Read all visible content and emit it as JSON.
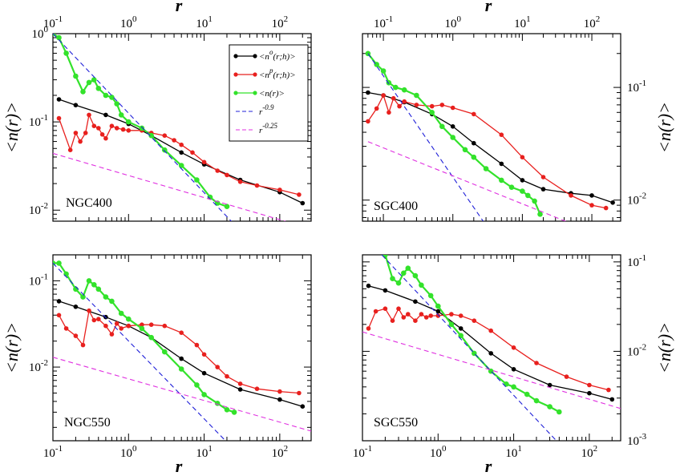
{
  "chart_data": [
    {
      "type": "line",
      "panel": "NGC400",
      "label": "NGC400",
      "xscale": "log",
      "yscale": "log",
      "xlim": [
        0.1,
        260
      ],
      "ylim": [
        0.0075,
        1.0
      ],
      "xlabel": "r",
      "ylabel": "<n(r)>",
      "xlabel_position": "top",
      "ylabel_side": "left",
      "xticks": [
        {
          "value": 0.1,
          "base": "10",
          "exp": "-1"
        },
        {
          "value": 1,
          "base": "10",
          "exp": "0"
        },
        {
          "value": 10,
          "base": "10",
          "exp": "1"
        },
        {
          "value": 100,
          "base": "10",
          "exp": "2"
        }
      ],
      "yticks": [
        {
          "value": 0.01,
          "base": "10",
          "exp": "-2"
        },
        {
          "value": 0.1,
          "base": "10",
          "exp": "-1"
        },
        {
          "value": 1,
          "base": "10",
          "exp": "0"
        }
      ],
      "legend": {
        "position": "top-right",
        "entries": [
          {
            "base": "<n",
            "sup": "o",
            "rest": "(r;h)>",
            "color": "#000000"
          },
          {
            "base": "<n",
            "sup": "p",
            "rest": "(r;h)>",
            "color": "#e8201e"
          },
          {
            "base": "<n(r)>",
            "sup": "",
            "rest": "",
            "color": "#33e22b"
          },
          {
            "base": "r",
            "sup": "-0.9",
            "rest": "",
            "color": "#2020d8"
          },
          {
            "base": "r",
            "sup": "-0.25",
            "rest": "",
            "color": "#e030e0"
          }
        ]
      },
      "series": [
        {
          "name": "<n^o(r;h)>",
          "color": "#000000",
          "style": "solid-markers",
          "x": [
            0.12,
            0.2,
            0.5,
            1,
            2,
            5,
            10,
            30,
            100,
            200
          ],
          "y": [
            0.18,
            0.155,
            0.12,
            0.095,
            0.07,
            0.045,
            0.033,
            0.022,
            0.016,
            0.012
          ]
        },
        {
          "name": "<n^p(r;h)>",
          "color": "#e8201e",
          "style": "solid-markers",
          "x": [
            0.12,
            0.17,
            0.2,
            0.23,
            0.27,
            0.3,
            0.35,
            0.4,
            0.45,
            0.5,
            0.6,
            0.7,
            0.85,
            1,
            1.5,
            2,
            3,
            4,
            5,
            7,
            10,
            15,
            20,
            30,
            50,
            100,
            180
          ],
          "y": [
            0.11,
            0.048,
            0.075,
            0.06,
            0.075,
            0.12,
            0.09,
            0.085,
            0.072,
            0.065,
            0.09,
            0.085,
            0.082,
            0.08,
            0.08,
            0.075,
            0.07,
            0.062,
            0.055,
            0.045,
            0.035,
            0.028,
            0.025,
            0.021,
            0.019,
            0.017,
            0.015
          ]
        },
        {
          "name": "<n(r)>",
          "color": "#33e22b",
          "style": "solid-markers",
          "x": [
            0.1,
            0.12,
            0.15,
            0.2,
            0.25,
            0.3,
            0.35,
            0.4,
            0.5,
            0.6,
            0.7,
            0.8,
            1,
            1.5,
            2,
            3,
            5,
            8,
            12,
            15,
            20
          ],
          "y": [
            1.0,
            0.9,
            0.6,
            0.33,
            0.22,
            0.28,
            0.3,
            0.24,
            0.2,
            0.19,
            0.16,
            0.12,
            0.1,
            0.085,
            0.07,
            0.048,
            0.032,
            0.022,
            0.014,
            0.012,
            0.011
          ]
        },
        {
          "name": "r^-0.9",
          "color": "#2020d8",
          "style": "dashed",
          "x": [
            0.1,
            40
          ],
          "y": [
            1.0,
            0.00453
          ]
        },
        {
          "name": "r^-0.25",
          "color": "#e030e0",
          "style": "dashed",
          "x": [
            0.1,
            260
          ],
          "y": [
            0.044,
            0.00613
          ]
        }
      ]
    },
    {
      "type": "line",
      "panel": "SGC400",
      "label": "SGC400",
      "xscale": "log",
      "yscale": "log",
      "xlim": [
        0.05,
        260
      ],
      "ylim": [
        0.0065,
        0.3
      ],
      "xlabel": "r",
      "ylabel": "<n(r)>",
      "xlabel_position": "top",
      "ylabel_side": "right",
      "xticks": [
        {
          "value": 0.1,
          "base": "10",
          "exp": "-1"
        },
        {
          "value": 1,
          "base": "10",
          "exp": "0"
        },
        {
          "value": 10,
          "base": "10",
          "exp": "1"
        },
        {
          "value": 100,
          "base": "10",
          "exp": "2"
        }
      ],
      "yticks": [
        {
          "value": 0.01,
          "base": "10",
          "exp": "-2"
        },
        {
          "value": 0.1,
          "base": "10",
          "exp": "-1"
        }
      ],
      "series": [
        {
          "name": "<n^o(r;h)>",
          "color": "#000000",
          "style": "solid-markers",
          "x": [
            0.06,
            0.1,
            0.2,
            0.5,
            1,
            2,
            5,
            10,
            20,
            50,
            100,
            200
          ],
          "y": [
            0.09,
            0.085,
            0.074,
            0.058,
            0.045,
            0.032,
            0.021,
            0.015,
            0.0125,
            0.0115,
            0.011,
            0.0095
          ]
        },
        {
          "name": "<n^p(r;h)>",
          "color": "#e8201e",
          "style": "solid-markers",
          "x": [
            0.06,
            0.08,
            0.1,
            0.12,
            0.14,
            0.17,
            0.2,
            0.3,
            0.5,
            0.7,
            1,
            2,
            5,
            10,
            20,
            50,
            100,
            160
          ],
          "y": [
            0.05,
            0.065,
            0.085,
            0.06,
            0.08,
            0.068,
            0.075,
            0.07,
            0.068,
            0.07,
            0.066,
            0.058,
            0.038,
            0.024,
            0.016,
            0.011,
            0.009,
            0.0085
          ]
        },
        {
          "name": "<n(r)>",
          "color": "#33e22b",
          "style": "solid-markers",
          "x": [
            0.06,
            0.08,
            0.1,
            0.12,
            0.15,
            0.2,
            0.3,
            0.5,
            0.7,
            1,
            1.5,
            2,
            3,
            5,
            7,
            10,
            12,
            15,
            18
          ],
          "y": [
            0.2,
            0.16,
            0.14,
            0.11,
            0.1,
            0.095,
            0.085,
            0.06,
            0.045,
            0.036,
            0.028,
            0.024,
            0.019,
            0.015,
            0.013,
            0.012,
            0.011,
            0.0098,
            0.0075
          ]
        },
        {
          "name": "r^-0.9",
          "color": "#2020d8",
          "style": "dashed",
          "x": [
            0.06,
            13
          ],
          "y": [
            0.2,
            0.0016
          ]
        },
        {
          "name": "r^-0.25",
          "color": "#e030e0",
          "style": "dashed",
          "x": [
            0.06,
            260
          ],
          "y": [
            0.033,
            0.00412
          ]
        }
      ]
    },
    {
      "type": "line",
      "panel": "NGC550",
      "label": "NGC550",
      "xscale": "log",
      "yscale": "log",
      "xlim": [
        0.1,
        260
      ],
      "ylim": [
        0.0014,
        0.2
      ],
      "xlabel": "r",
      "ylabel": "<n(r)>",
      "xlabel_position": "bottom",
      "ylabel_side": "left",
      "xticks": [
        {
          "value": 0.1,
          "base": "10",
          "exp": "-1"
        },
        {
          "value": 1,
          "base": "10",
          "exp": "0"
        },
        {
          "value": 10,
          "base": "10",
          "exp": "1"
        },
        {
          "value": 100,
          "base": "10",
          "exp": "2"
        }
      ],
      "yticks": [
        {
          "value": 0.01,
          "base": "10",
          "exp": "-2"
        },
        {
          "value": 0.1,
          "base": "10",
          "exp": "-1"
        }
      ],
      "series": [
        {
          "name": "<n^o(r;h)>",
          "color": "#000000",
          "style": "solid-markers",
          "x": [
            0.12,
            0.2,
            0.5,
            1,
            2,
            5,
            10,
            30,
            100,
            200
          ],
          "y": [
            0.058,
            0.05,
            0.038,
            0.03,
            0.022,
            0.0125,
            0.0085,
            0.0055,
            0.0042,
            0.0035
          ]
        },
        {
          "name": "<n^p(r;h)>",
          "color": "#e8201e",
          "style": "solid-markers",
          "x": [
            0.12,
            0.15,
            0.2,
            0.25,
            0.3,
            0.35,
            0.4,
            0.5,
            0.6,
            0.7,
            0.8,
            1,
            1.5,
            2,
            3,
            5,
            8,
            10,
            15,
            20,
            30,
            50,
            100,
            180
          ],
          "y": [
            0.04,
            0.028,
            0.023,
            0.018,
            0.045,
            0.035,
            0.036,
            0.03,
            0.024,
            0.032,
            0.028,
            0.03,
            0.031,
            0.031,
            0.03,
            0.025,
            0.018,
            0.014,
            0.01,
            0.0078,
            0.0064,
            0.0056,
            0.0052,
            0.005
          ]
        },
        {
          "name": "<n(r)>",
          "color": "#33e22b",
          "style": "solid-markers",
          "x": [
            0.1,
            0.12,
            0.15,
            0.2,
            0.25,
            0.3,
            0.35,
            0.4,
            0.5,
            0.6,
            0.8,
            1,
            1.5,
            2,
            3,
            5,
            8,
            10,
            15,
            20,
            25
          ],
          "y": [
            0.16,
            0.16,
            0.12,
            0.08,
            0.065,
            0.1,
            0.09,
            0.08,
            0.065,
            0.058,
            0.042,
            0.036,
            0.028,
            0.022,
            0.015,
            0.0095,
            0.0062,
            0.0048,
            0.0038,
            0.0032,
            0.003
          ]
        },
        {
          "name": "r^-0.9",
          "color": "#2020d8",
          "style": "dashed",
          "x": [
            0.1,
            50
          ],
          "y": [
            0.16,
            0.000589
          ]
        },
        {
          "name": "r^-0.25",
          "color": "#e030e0",
          "style": "dashed",
          "x": [
            0.1,
            260
          ],
          "y": [
            0.013,
            0.00181
          ]
        }
      ]
    },
    {
      "type": "line",
      "panel": "SGC550",
      "label": "SGC550",
      "xscale": "log",
      "yscale": "log",
      "xlim": [
        0.1,
        260
      ],
      "ylim": [
        0.001,
        0.12
      ],
      "xlabel": "r",
      "ylabel": "<n(r)>",
      "xlabel_position": "bottom",
      "ylabel_side": "right",
      "xticks": [
        {
          "value": 0.1,
          "base": "10",
          "exp": "-1"
        },
        {
          "value": 1,
          "base": "10",
          "exp": "0"
        },
        {
          "value": 10,
          "base": "10",
          "exp": "1"
        },
        {
          "value": 100,
          "base": "10",
          "exp": "2"
        }
      ],
      "yticks": [
        {
          "value": 0.001,
          "base": "10",
          "exp": "-3"
        },
        {
          "value": 0.01,
          "base": "10",
          "exp": "-2"
        },
        {
          "value": 0.1,
          "base": "10",
          "exp": "-1"
        }
      ],
      "series": [
        {
          "name": "<n^o(r;h)>",
          "color": "#000000",
          "style": "solid-markers",
          "x": [
            0.12,
            0.2,
            0.5,
            1,
            2,
            5,
            10,
            30,
            100,
            200
          ],
          "y": [
            0.054,
            0.048,
            0.036,
            0.028,
            0.018,
            0.0095,
            0.0063,
            0.0042,
            0.0034,
            0.0029
          ]
        },
        {
          "name": "<n^p(r;h)>",
          "color": "#e8201e",
          "style": "solid-markers",
          "x": [
            0.12,
            0.15,
            0.2,
            0.25,
            0.3,
            0.35,
            0.4,
            0.5,
            0.6,
            0.7,
            0.8,
            1,
            1.5,
            2,
            3,
            5,
            10,
            20,
            50,
            100,
            180
          ],
          "y": [
            0.018,
            0.028,
            0.03,
            0.022,
            0.03,
            0.024,
            0.026,
            0.022,
            0.026,
            0.024,
            0.025,
            0.025,
            0.026,
            0.025,
            0.022,
            0.017,
            0.011,
            0.0074,
            0.0052,
            0.0042,
            0.0037
          ]
        },
        {
          "name": "<n(r)>",
          "color": "#33e22b",
          "style": "solid-markers",
          "x": [
            0.2,
            0.25,
            0.3,
            0.35,
            0.4,
            0.5,
            0.6,
            0.8,
            1,
            1.5,
            2,
            3,
            5,
            8,
            10,
            15,
            20,
            30,
            40
          ],
          "y": [
            0.12,
            0.065,
            0.058,
            0.075,
            0.085,
            0.07,
            0.055,
            0.042,
            0.032,
            0.02,
            0.015,
            0.0095,
            0.006,
            0.0043,
            0.004,
            0.0033,
            0.0028,
            0.0024,
            0.0021
          ]
        },
        {
          "name": "r^-0.9",
          "color": "#2020d8",
          "style": "dashed",
          "x": [
            0.18,
            50
          ],
          "y": [
            0.12,
            0.000757
          ]
        },
        {
          "name": "r^-0.25",
          "color": "#e030e0",
          "style": "dashed",
          "x": [
            0.1,
            260
          ],
          "y": [
            0.0165,
            0.00229
          ]
        }
      ]
    }
  ]
}
